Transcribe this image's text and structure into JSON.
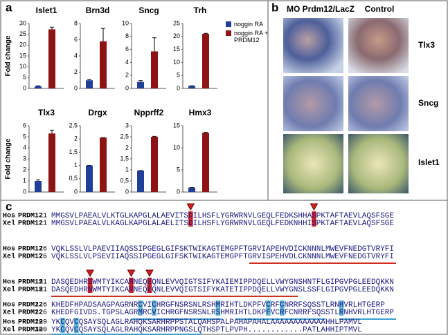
{
  "panels": {
    "a": "a",
    "b": "b",
    "c": "c"
  },
  "legend": {
    "series": [
      {
        "name": "noggin RA",
        "color": "#1f3f99"
      },
      {
        "name": "noggin RA + PRDM12",
        "color": "#8e1414"
      }
    ]
  },
  "chart_data": [
    {
      "type": "bar",
      "title": "Islet1",
      "ylabel": "Fold change",
      "ylim": [
        0,
        30
      ],
      "yticks": [
        0,
        5,
        10,
        15,
        20,
        25,
        30
      ],
      "values": [
        1,
        27.3
      ],
      "errors": [
        0.2,
        1
      ]
    },
    {
      "type": "bar",
      "title": "Brn3d",
      "ylim": [
        0,
        8
      ],
      "yticks": [
        0,
        2,
        4,
        6,
        8
      ],
      "values": [
        1,
        5.8
      ],
      "errors": [
        0.1,
        1.6
      ]
    },
    {
      "type": "bar",
      "title": "Sncg",
      "ylim": [
        0,
        10
      ],
      "yticks": [
        0,
        2,
        4,
        6,
        8,
        10
      ],
      "values": [
        1,
        5.7
      ],
      "errors": [
        0.2,
        2.1
      ]
    },
    {
      "type": "bar",
      "title": "Trh",
      "ylim": [
        0,
        25
      ],
      "yticks": [
        0,
        5,
        10,
        15,
        20,
        25
      ],
      "values": [
        1,
        21
      ],
      "errors": [
        0,
        0.2
      ]
    },
    {
      "type": "bar",
      "title": "Tlx3",
      "ylabel": "Fold change",
      "ylim": [
        0,
        6
      ],
      "yticks": [
        0,
        1,
        2,
        3,
        4,
        5,
        6
      ],
      "values": [
        1,
        5.3
      ],
      "errors": [
        0.1,
        0.3
      ]
    },
    {
      "type": "bar",
      "title": "Drgx",
      "ylim": [
        0,
        2.5
      ],
      "yticks": [
        0,
        {
          "value": 0.5,
          "label": "0,5"
        },
        1,
        {
          "value": 1.5,
          "label": "1,5"
        },
        2,
        {
          "value": 2.5,
          "label": "2,5"
        }
      ],
      "values": [
        1,
        2.05
      ],
      "errors": [
        0,
        0
      ]
    },
    {
      "type": "bar",
      "title": "Npprff2",
      "ylim": [
        0,
        3
      ],
      "yticks": [
        0,
        {
          "value": 0.5,
          "label": "0,5"
        },
        1,
        {
          "value": 1.5,
          "label": "1,5"
        },
        2,
        {
          "value": 2.5,
          "label": "2,5"
        },
        3
      ],
      "values": [
        0.97,
        2.5
      ],
      "errors": [
        0,
        0.02
      ]
    },
    {
      "type": "bar",
      "title": "Hmx3",
      "ylim": [
        0,
        15
      ],
      "yticks": [
        0,
        5,
        10,
        15
      ],
      "values": [
        1,
        13.4
      ],
      "errors": [
        0,
        0.1
      ]
    }
  ],
  "images": {
    "columns": [
      "MO Prdm12/LacZ",
      "Control"
    ],
    "rows": [
      "Tlx3",
      "Sncg",
      "Islet1"
    ]
  },
  "alignment": {
    "blocks": [
      {
        "rows": [
          {
            "species": "Hos",
            "protein": "PRDM12",
            "start": 1,
            "sequence": "MMGSVLPAEALVLKTGLKAPGLALAEVITSDILHSFLYGRWRNVLGEQLFEDKSHHASPKTAFTAEVLAQSFSGE"
          },
          {
            "species": "Xel",
            "protein": "PRDM12",
            "start": 1,
            "sequence": "MMGSVLPAEALVLKAGLKAPGLALAELITSDILHSFLYGRWRNVLGEQLFEDKNHHISPKTAFTAEVLAQSFSGE"
          }
        ]
      },
      {
        "rows": [
          {
            "species": "Hos",
            "protein": "PRDM12",
            "start": 76,
            "sequence": "VQKLSSLVLPAEVIIAQSSIPGEGLGIFSKTWIKAGTEMGPFTGRVIAPEHVDICKNNNLMWEVFNEDGTVRYFI"
          },
          {
            "species": "Xel",
            "protein": "PRDM12",
            "start": 76,
            "sequence": "VQKLSSLVLPSEVIIAQSSIPGEGLGIFSKTWIKAGTEMGPFTGRVISPEHVDLCKNNNLMWEVFNEDGTVRYFI"
          }
        ]
      },
      {
        "rows": [
          {
            "species": "Hos",
            "protein": "PRDM12",
            "start": 151,
            "sequence": "DASQEDHRSWMTYIKCARNEQEQNLEVVQIGTSIFYKAIEMIPPDQELLVWYGNSHNTFLGIPGVPGLEEDQKKN"
          },
          {
            "species": "Xel",
            "protein": "PRDM12",
            "start": 151,
            "sequence": "DASQEDHRNWMTYIKCARNEQEQNLEVVQIGTSIFYKATETIPPDQELLVWYGNSLSSFLGIPGVPGLEEDQKKN"
          }
        ]
      },
      {
        "rows": [
          {
            "species": "Hos",
            "protein": "PRDM12",
            "start": 226,
            "sequence": "KHEDFHPADSAAGPAGRNRCVICHRGFNSRSNLRSHMRIHTLDKPFVCRFCNRRFSQSSTLRNHVRLHTGERP"
          },
          {
            "species": "Xel",
            "protein": "PRDM12",
            "start": 226,
            "sequence": "KHEDFGIVDS.TGPSLAGRMRCVICHRGFNSRSNLRSHMRIHTLDKPFVCRFCNRRFSQSSTLRNHVRLHTGERP"
          }
        ]
      },
      {
        "rows": [
          {
            "species": "Hos",
            "protein": "PRDM12",
            "start": 299,
            "sequence": "YKCQVCQSAYSQLAGLRAHQKSARHRPPSTALQAHSPALPAHAPAHALAAAAAAAAAAAAHHLPAMVL"
          },
          {
            "species": "Xel",
            "protein": "PRDM12",
            "start": 300,
            "sequence": "YKCQVCQSAYSQLAGLRAHQKSARHRPPNGSLQTHSPTLPVPH............PATLAHHIPTMVL"
          }
        ]
      }
    ]
  }
}
